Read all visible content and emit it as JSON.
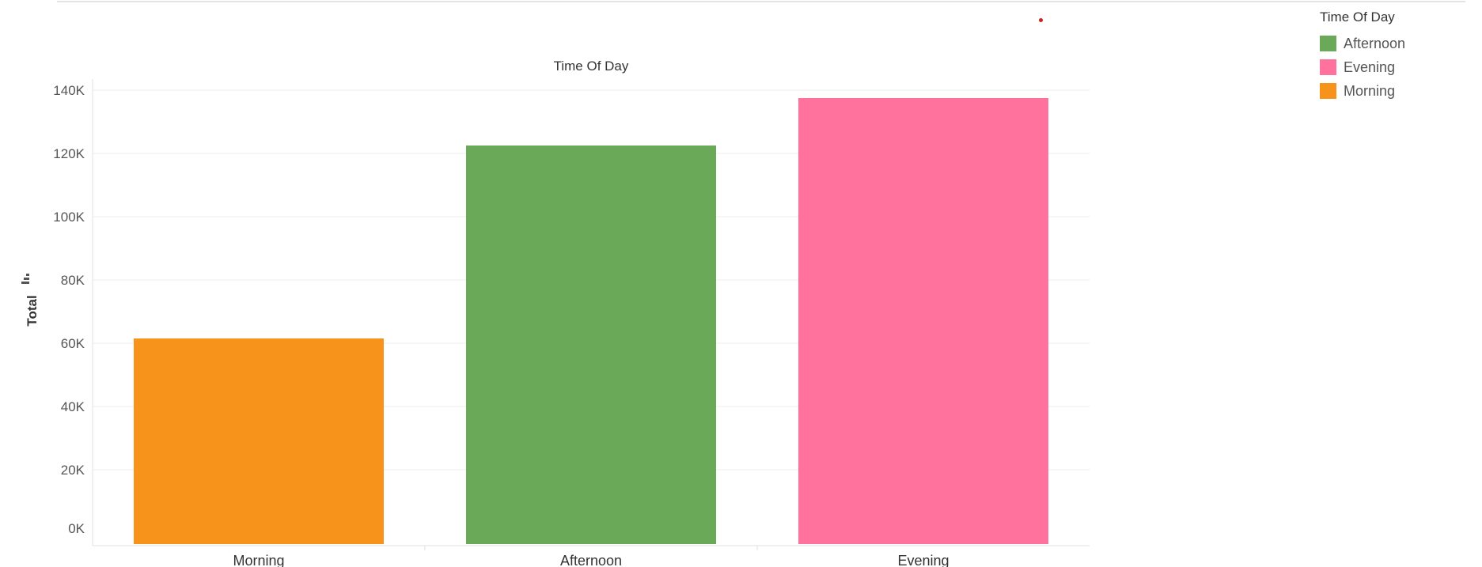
{
  "legend": {
    "title": "Time Of Day",
    "items": [
      {
        "label": "Afternoon",
        "color": "#69a957"
      },
      {
        "label": "Evening",
        "color": "#ff729e"
      },
      {
        "label": "Morning",
        "color": "#f7931b"
      }
    ]
  },
  "total_icon": "bar-chart-icon",
  "chart_data": {
    "type": "bar",
    "title": "Time Of Day",
    "xlabel": "",
    "ylabel": "Total",
    "categories": [
      "Morning",
      "Afternoon",
      "Evening"
    ],
    "values": [
      61500,
      122500,
      137500
    ],
    "colors": [
      "#f7931b",
      "#69a957",
      "#ff729e"
    ],
    "ylim": [
      0,
      140000
    ],
    "yticks": [
      "0K",
      "20K",
      "40K",
      "60K",
      "80K",
      "100K",
      "120K",
      "140K"
    ],
    "ytick_values": [
      0,
      20000,
      40000,
      60000,
      80000,
      100000,
      120000,
      140000
    ],
    "grid": true,
    "legend_position": "top-right"
  }
}
